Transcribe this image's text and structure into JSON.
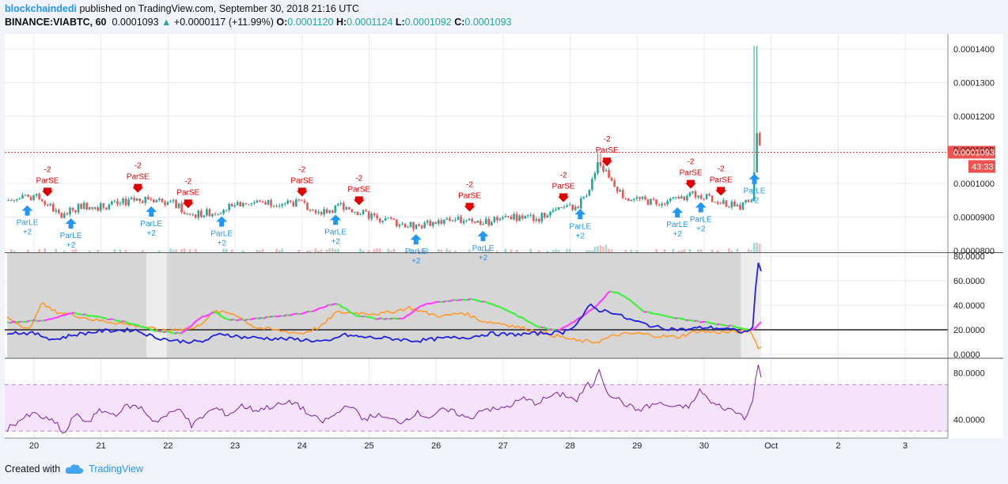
{
  "header": {
    "author": "blockchaindedi",
    "published": "published on TradingView.com, September 30, 2018 21:16 UTC",
    "symbol": "BINANCE:VIABTC, 60",
    "last": "0.0001093",
    "change": "+0.0000117 (+11.99%)",
    "open_label": "O:",
    "open": "0.0001120",
    "high_label": "H:",
    "high": "0.0001124",
    "low_label": "L:",
    "low": "0.0001092",
    "close_label": "C:",
    "close": "0.0001093"
  },
  "footer": {
    "created_with": "Created with",
    "brand": "TradingView"
  },
  "colors": {
    "up": "#26a69a",
    "down": "#ef5350",
    "sell": "#e00000",
    "buy": "#2196f3",
    "rsi": "#7b1fa2",
    "adx": "#2222dd",
    "plus_di_on": "#ff3cff",
    "plus_di_off": "#3cf03c",
    "minus_di": "#ff9a2e"
  },
  "chart_data": [
    {
      "type": "candlestick",
      "panel": "price",
      "x_axis": {
        "ticks": [
          "20",
          "21",
          "22",
          "23",
          "24",
          "25",
          "26",
          "27",
          "28",
          "29",
          "30",
          "Oct",
          "2",
          "3"
        ]
      },
      "y_axis": {
        "ticks": [
          "0.0001400",
          "0.0001300",
          "0.0001200",
          "0.0001100",
          "0.0001000",
          "0.0000900",
          "0.0000800"
        ],
        "range": [
          7.95e-05,
          0.0001445
        ]
      },
      "last_price_label": "0.0001093",
      "countdown_label": "43:33",
      "approx_close_path": [
        {
          "x": 19.6,
          "y": 9.5e-05
        },
        {
          "x": 20.1,
          "y": 9.6e-05
        },
        {
          "x": 20.4,
          "y": 9e-05
        },
        {
          "x": 20.7,
          "y": 9.35e-05
        },
        {
          "x": 21.0,
          "y": 9.3e-05
        },
        {
          "x": 21.5,
          "y": 9.5e-05
        },
        {
          "x": 21.7,
          "y": 9.55e-05
        },
        {
          "x": 22.1,
          "y": 9.4e-05
        },
        {
          "x": 22.3,
          "y": 9.05e-05
        },
        {
          "x": 22.7,
          "y": 9.15e-05
        },
        {
          "x": 23.0,
          "y": 9.4e-05
        },
        {
          "x": 23.5,
          "y": 9.45e-05
        },
        {
          "x": 24.0,
          "y": 9.4e-05
        },
        {
          "x": 24.3,
          "y": 9.15e-05
        },
        {
          "x": 24.6,
          "y": 9.35e-05
        },
        {
          "x": 24.9,
          "y": 9.1e-05
        },
        {
          "x": 25.3,
          "y": 8.9e-05
        },
        {
          "x": 25.7,
          "y": 8.7e-05
        },
        {
          "x": 26.1,
          "y": 8.9e-05
        },
        {
          "x": 26.5,
          "y": 8.95e-05
        },
        {
          "x": 26.7,
          "y": 8.8e-05
        },
        {
          "x": 27.0,
          "y": 9e-05
        },
        {
          "x": 27.5,
          "y": 8.95e-05
        },
        {
          "x": 27.8,
          "y": 9.2e-05
        },
        {
          "x": 28.1,
          "y": 9.3e-05
        },
        {
          "x": 28.3,
          "y": 9.9e-05
        },
        {
          "x": 28.42,
          "y": 0.000106
        },
        {
          "x": 28.55,
          "y": 0.000103
        },
        {
          "x": 28.8,
          "y": 9.6e-05
        },
        {
          "x": 29.2,
          "y": 9.45e-05
        },
        {
          "x": 29.6,
          "y": 9.5e-05
        },
        {
          "x": 29.9,
          "y": 9.7e-05
        },
        {
          "x": 30.2,
          "y": 9.45e-05
        },
        {
          "x": 30.5,
          "y": 9.3e-05
        },
        {
          "x": 30.72,
          "y": 9.5e-05
        },
        {
          "x": 30.78,
          "y": 0.000115
        },
        {
          "x": 30.85,
          "y": 0.0001093
        }
      ],
      "signals": [
        {
          "side": "sell",
          "x": 20.2,
          "text1": "-2",
          "text2": "ParSE"
        },
        {
          "side": "buy",
          "x": 19.9,
          "text1": "ParLE",
          "text2": "+2"
        },
        {
          "side": "buy",
          "x": 20.55,
          "text1": "ParLE",
          "text2": "+2"
        },
        {
          "side": "sell",
          "x": 21.55,
          "text1": "-2",
          "text2": "ParSE"
        },
        {
          "side": "buy",
          "x": 21.75,
          "text1": "ParLE",
          "text2": "+2"
        },
        {
          "side": "sell",
          "x": 22.3,
          "text1": "-2",
          "text2": "ParSE"
        },
        {
          "side": "buy",
          "x": 22.8,
          "text1": "ParLE",
          "text2": "+2"
        },
        {
          "side": "sell",
          "x": 24.0,
          "text1": "-2",
          "text2": "ParSE"
        },
        {
          "side": "buy",
          "x": 24.5,
          "text1": "ParLE",
          "text2": "+2"
        },
        {
          "side": "sell",
          "x": 24.85,
          "text1": "-2",
          "text2": "ParSE"
        },
        {
          "side": "buy",
          "x": 25.7,
          "text1": "ParLE",
          "text2": "+2"
        },
        {
          "side": "sell",
          "x": 26.5,
          "text1": "-2",
          "text2": "ParSE"
        },
        {
          "side": "buy",
          "x": 26.7,
          "text1": "ParLE",
          "text2": "+2"
        },
        {
          "side": "sell",
          "x": 27.9,
          "text1": "-2",
          "text2": "ParSE"
        },
        {
          "side": "buy",
          "x": 28.15,
          "text1": "ParLE",
          "text2": "+2"
        },
        {
          "side": "sell",
          "x": 28.55,
          "text1": "-2",
          "text2": "ParSE"
        },
        {
          "side": "buy",
          "x": 29.6,
          "text1": "ParLE",
          "text2": "+2"
        },
        {
          "side": "sell",
          "x": 29.8,
          "text1": "-2",
          "text2": "ParSE"
        },
        {
          "side": "buy",
          "x": 29.95,
          "text1": "ParLE",
          "text2": "+2"
        },
        {
          "side": "sell",
          "x": 30.25,
          "text1": "-2",
          "text2": "ParSE"
        },
        {
          "side": "buy",
          "x": 30.75,
          "text1": "ParLE",
          "text2": "+2"
        }
      ]
    },
    {
      "type": "line",
      "panel": "dmi",
      "y_axis": {
        "ticks": [
          "80.0000",
          "60.0000",
          "40.0000",
          "20.0000",
          "0.0000"
        ],
        "range": [
          0,
          80
        ]
      },
      "reference_line": 20,
      "series": [
        {
          "key": "adx",
          "points": [
            [
              19.6,
              18
            ],
            [
              20.0,
              17
            ],
            [
              20.3,
              12
            ],
            [
              20.6,
              16
            ],
            [
              21.0,
              19
            ],
            [
              21.5,
              20
            ],
            [
              21.8,
              14
            ],
            [
              22.1,
              11
            ],
            [
              22.5,
              10
            ],
            [
              22.8,
              17
            ],
            [
              23.1,
              14
            ],
            [
              23.5,
              13
            ],
            [
              24.0,
              12
            ],
            [
              24.4,
              10
            ],
            [
              24.6,
              16
            ],
            [
              24.9,
              14
            ],
            [
              25.3,
              13
            ],
            [
              25.7,
              11
            ],
            [
              26.1,
              13
            ],
            [
              26.5,
              14
            ],
            [
              26.8,
              17
            ],
            [
              27.1,
              16
            ],
            [
              27.5,
              17
            ],
            [
              27.9,
              18
            ],
            [
              28.1,
              25
            ],
            [
              28.3,
              40
            ],
            [
              28.42,
              36
            ],
            [
              28.6,
              35
            ],
            [
              28.9,
              28
            ],
            [
              29.3,
              22
            ],
            [
              29.7,
              20
            ],
            [
              30.0,
              22
            ],
            [
              30.3,
              21
            ],
            [
              30.6,
              18
            ],
            [
              30.72,
              20
            ],
            [
              30.8,
              75
            ],
            [
              30.88,
              65
            ]
          ]
        },
        {
          "key": "plus_di",
          "points": [
            [
              19.6,
              26
            ],
            [
              20.2,
              28
            ],
            [
              20.6,
              34
            ],
            [
              21.0,
              30
            ],
            [
              21.4,
              26
            ],
            [
              21.8,
              19
            ],
            [
              22.2,
              17
            ],
            [
              22.5,
              30
            ],
            [
              22.7,
              35
            ],
            [
              22.9,
              28
            ],
            [
              23.2,
              28
            ],
            [
              23.6,
              31
            ],
            [
              24.0,
              33
            ],
            [
              24.3,
              38
            ],
            [
              24.5,
              42
            ],
            [
              24.8,
              32
            ],
            [
              25.1,
              29
            ],
            [
              25.5,
              29
            ],
            [
              25.8,
              40
            ],
            [
              26.2,
              44
            ],
            [
              26.5,
              45
            ],
            [
              26.8,
              42
            ],
            [
              27.1,
              35
            ],
            [
              27.5,
              23
            ],
            [
              27.8,
              19
            ],
            [
              28.1,
              28
            ],
            [
              28.4,
              40
            ],
            [
              28.6,
              52
            ],
            [
              28.8,
              48
            ],
            [
              29.1,
              35
            ],
            [
              29.5,
              30
            ],
            [
              29.9,
              27
            ],
            [
              30.3,
              24
            ],
            [
              30.6,
              21
            ],
            [
              30.75,
              20
            ],
            [
              30.88,
              29
            ]
          ]
        },
        {
          "key": "minus_di",
          "points": [
            [
              19.6,
              30
            ],
            [
              19.95,
              20
            ],
            [
              20.1,
              42
            ],
            [
              20.3,
              35
            ],
            [
              20.6,
              32
            ],
            [
              20.9,
              28
            ],
            [
              21.2,
              26
            ],
            [
              21.6,
              23
            ],
            [
              21.9,
              19
            ],
            [
              22.2,
              21
            ],
            [
              22.4,
              21
            ],
            [
              22.7,
              35
            ],
            [
              23.0,
              33
            ],
            [
              23.3,
              22
            ],
            [
              23.7,
              19
            ],
            [
              24.0,
              17
            ],
            [
              24.3,
              23
            ],
            [
              24.5,
              34
            ],
            [
              24.8,
              34
            ],
            [
              25.2,
              33
            ],
            [
              25.6,
              38
            ],
            [
              25.9,
              33
            ],
            [
              26.1,
              31
            ],
            [
              26.4,
              34
            ],
            [
              26.7,
              27
            ],
            [
              27.0,
              25
            ],
            [
              27.4,
              20
            ],
            [
              27.8,
              15
            ],
            [
              28.1,
              11
            ],
            [
              28.4,
              10
            ],
            [
              28.7,
              16
            ],
            [
              29.0,
              17
            ],
            [
              29.3,
              15
            ],
            [
              29.6,
              14
            ],
            [
              29.9,
              19
            ],
            [
              30.1,
              18
            ],
            [
              30.4,
              18
            ],
            [
              30.7,
              19
            ],
            [
              30.8,
              6
            ],
            [
              30.88,
              6
            ]
          ]
        }
      ]
    },
    {
      "type": "line",
      "panel": "rsi",
      "y_axis": {
        "ticks": [
          "80.0000",
          "40.0000"
        ],
        "range": [
          24,
          92
        ]
      },
      "bands": [
        70,
        30
      ],
      "series": [
        {
          "key": "rsi",
          "points": [
            [
              19.6,
              32
            ],
            [
              19.8,
              40
            ],
            [
              20.0,
              45
            ],
            [
              20.2,
              40
            ],
            [
              20.35,
              36
            ],
            [
              20.45,
              26
            ],
            [
              20.6,
              44
            ],
            [
              20.8,
              38
            ],
            [
              21.0,
              48
            ],
            [
              21.2,
              44
            ],
            [
              21.4,
              52
            ],
            [
              21.6,
              50
            ],
            [
              21.8,
              38
            ],
            [
              22.0,
              44
            ],
            [
              22.2,
              50
            ],
            [
              22.35,
              34
            ],
            [
              22.5,
              42
            ],
            [
              22.7,
              50
            ],
            [
              22.9,
              44
            ],
            [
              23.1,
              52
            ],
            [
              23.3,
              48
            ],
            [
              23.6,
              52
            ],
            [
              23.9,
              55
            ],
            [
              24.1,
              44
            ],
            [
              24.3,
              38
            ],
            [
              24.5,
              44
            ],
            [
              24.7,
              54
            ],
            [
              24.9,
              40
            ],
            [
              25.1,
              44
            ],
            [
              25.3,
              40
            ],
            [
              25.5,
              38
            ],
            [
              25.7,
              46
            ],
            [
              25.9,
              42
            ],
            [
              26.1,
              48
            ],
            [
              26.3,
              46
            ],
            [
              26.5,
              40
            ],
            [
              26.7,
              50
            ],
            [
              26.9,
              48
            ],
            [
              27.1,
              52
            ],
            [
              27.3,
              58
            ],
            [
              27.5,
              54
            ],
            [
              27.7,
              60
            ],
            [
              27.9,
              62
            ],
            [
              28.1,
              56
            ],
            [
              28.25,
              70
            ],
            [
              28.35,
              68
            ],
            [
              28.42,
              86
            ],
            [
              28.55,
              64
            ],
            [
              28.8,
              54
            ],
            [
              29.0,
              48
            ],
            [
              29.3,
              54
            ],
            [
              29.6,
              50
            ],
            [
              29.8,
              52
            ],
            [
              29.95,
              66
            ],
            [
              30.1,
              54
            ],
            [
              30.3,
              50
            ],
            [
              30.5,
              46
            ],
            [
              30.6,
              42
            ],
            [
              30.72,
              54
            ],
            [
              30.8,
              88
            ],
            [
              30.88,
              72
            ]
          ]
        }
      ]
    }
  ]
}
